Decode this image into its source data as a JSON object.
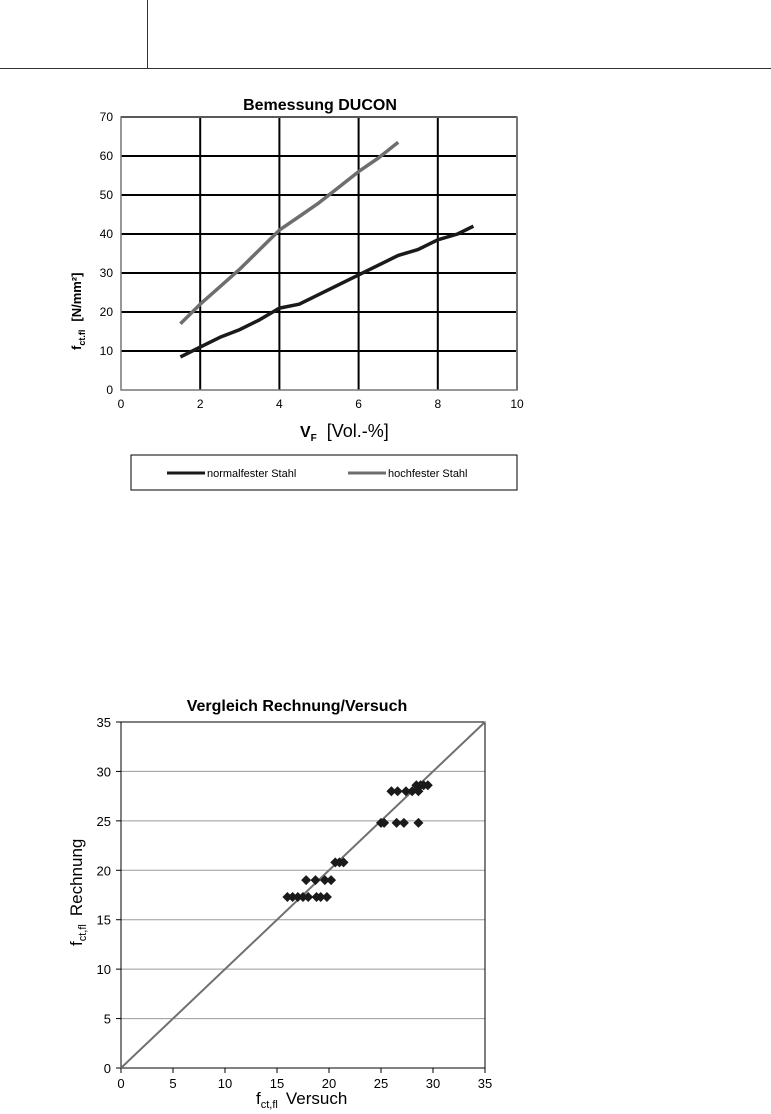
{
  "chart_data": [
    {
      "type": "line",
      "title": "Bemessung DUCON",
      "xlabel_main": "V",
      "xlabel_sub": "F",
      "xlabel_unit": "[Vol.-%]",
      "ylabel_main": "f",
      "ylabel_sub": "ct.fl",
      "ylabel_unit": "[N/mm²]",
      "xlim": [
        0,
        10
      ],
      "ylim": [
        0,
        70
      ],
      "x_ticks": [
        "0",
        "2",
        "4",
        "6",
        "8",
        "10"
      ],
      "y_ticks": [
        "0",
        "10",
        "20",
        "30",
        "40",
        "50",
        "60",
        "70"
      ],
      "grid": true,
      "legend_position": "bottom",
      "series": [
        {
          "name": "normalfester Stahl",
          "color": "#1a1a1a",
          "x": [
            1.5,
            2,
            2.5,
            3,
            3.5,
            4,
            4.5,
            5,
            5.5,
            6,
            6.5,
            7,
            7.5,
            8,
            8.5,
            8.9
          ],
          "y": [
            8.5,
            11,
            13.5,
            15.5,
            18,
            21,
            22,
            24.5,
            27,
            29.5,
            32,
            34.5,
            36,
            38.5,
            40,
            42
          ]
        },
        {
          "name": "hochfester Stahl",
          "color": "#6e6e6e",
          "x": [
            1.5,
            2,
            2.5,
            3,
            3.5,
            4,
            4.5,
            5,
            5.5,
            6,
            6.5,
            7
          ],
          "y": [
            17,
            22,
            26.5,
            31,
            36,
            41,
            44.5,
            48,
            52,
            56,
            59.5,
            63.5
          ]
        }
      ]
    },
    {
      "type": "scatter",
      "title": "Vergleich Rechnung/Versuch",
      "xlabel_main": "f",
      "xlabel_sub": "ct,fl",
      "xlabel_unit": "Versuch",
      "ylabel_main": "f",
      "ylabel_sub": "ct,fl",
      "ylabel_unit": "Rechnung",
      "xlim": [
        0,
        35
      ],
      "ylim": [
        0,
        35
      ],
      "x_ticks": [
        "0",
        "5",
        "10",
        "15",
        "20",
        "25",
        "30",
        "35"
      ],
      "y_ticks": [
        "0",
        "5",
        "10",
        "15",
        "20",
        "25",
        "30",
        "35"
      ],
      "grid": "horizontal",
      "reference_line": {
        "x": [
          0,
          35
        ],
        "y": [
          0,
          35
        ],
        "color": "#707070"
      },
      "marker_color": "#1a1a1a",
      "points": {
        "x": [
          16.0,
          16.5,
          17.0,
          17.5,
          18.0,
          18.8,
          19.2,
          19.8,
          17.8,
          18.7,
          19.6,
          20.2,
          20.6,
          21.0,
          21.4,
          25.0,
          25.3,
          26.5,
          27.2,
          28.6,
          26.0,
          26.6,
          27.4,
          28.0,
          28.6,
          28.4,
          28.8,
          29.1,
          29.5
        ],
        "y": [
          17.3,
          17.3,
          17.3,
          17.3,
          17.3,
          17.3,
          17.3,
          17.3,
          19.0,
          19.0,
          19.0,
          19.0,
          20.8,
          20.8,
          20.8,
          24.8,
          24.8,
          24.8,
          24.8,
          24.8,
          28.0,
          28.0,
          28.0,
          28.0,
          28.0,
          28.6,
          28.6,
          28.6,
          28.6
        ]
      }
    }
  ]
}
